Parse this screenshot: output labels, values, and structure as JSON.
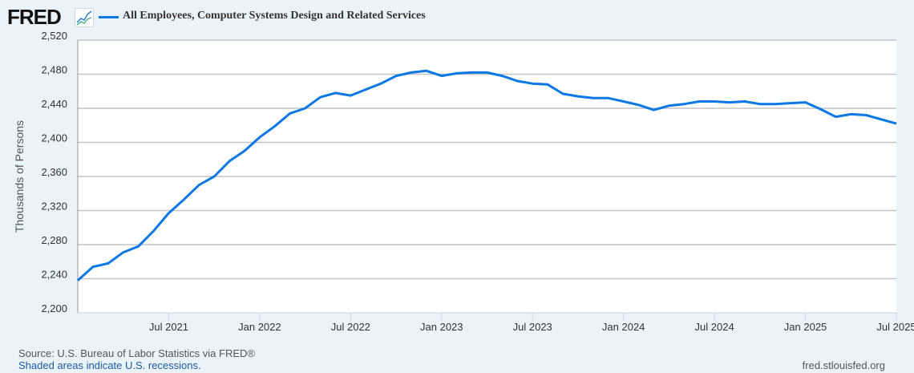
{
  "header": {
    "logo": "FRED",
    "logo_icon": "line-chart-icon",
    "series_title": "All Employees, Computer Systems Design and Related Services"
  },
  "footer": {
    "source": "Source: U.S. Bureau of Labor Statistics via FRED®",
    "recessions": "Shaded areas indicate U.S. recessions.",
    "site": "fred.stlouisfed.org"
  },
  "chart_data": {
    "type": "line",
    "title": "All Employees, Computer Systems Design and Related Services",
    "ylabel": "Thousands of Persons",
    "xlabel": "",
    "ylim": [
      2200,
      2520
    ],
    "yticks": [
      2200,
      2240,
      2280,
      2320,
      2360,
      2400,
      2440,
      2480,
      2520
    ],
    "ytick_labels": [
      "2,200",
      "2,240",
      "2,280",
      "2,320",
      "2,360",
      "2,400",
      "2,440",
      "2,480",
      "2,520"
    ],
    "xlim": [
      "2021-01",
      "2025-07"
    ],
    "xtick_labels": [
      "Jul 2021",
      "Jan 2022",
      "Jul 2022",
      "Jan 2023",
      "Jul 2023",
      "Jan 2024",
      "Jul 2024",
      "Jan 2025",
      "Jul 2025"
    ],
    "xticks": [
      "2021-07",
      "2022-01",
      "2022-07",
      "2023-01",
      "2023-07",
      "2024-01",
      "2024-07",
      "2025-01",
      "2025-07"
    ],
    "grid": true,
    "color": "#0b78e3",
    "start": "2021-01",
    "frequency": "monthly",
    "values": [
      2238,
      2254,
      2258,
      2271,
      2278,
      2296,
      2317,
      2333,
      2350,
      2360,
      2378,
      2390,
      2406,
      2419,
      2434,
      2440,
      2453,
      2458,
      2455,
      2462,
      2469,
      2478,
      2482,
      2484,
      2478,
      2481,
      2482,
      2482,
      2478,
      2472,
      2469,
      2468,
      2457,
      2454,
      2452,
      2452,
      2448,
      2444,
      2438,
      2443,
      2445,
      2448,
      2448,
      2447,
      2448,
      2445,
      2445,
      2446,
      2447,
      2439,
      2430,
      2433,
      2432,
      2427,
      2422
    ]
  }
}
